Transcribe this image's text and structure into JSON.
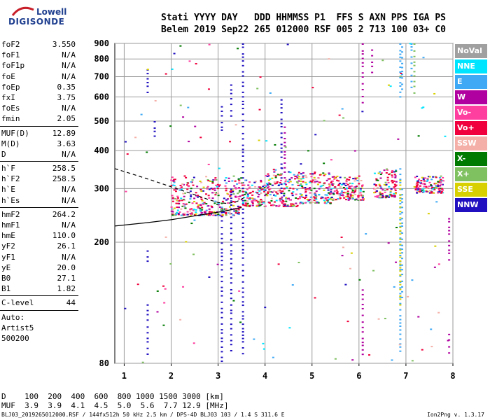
{
  "logo": {
    "line1": "Lowell",
    "line2": "DIGISONDE"
  },
  "header": {
    "row1": "Stati YYYY DAY   DDD HHMMSS P1  FFS S AXN PPS IGA PS",
    "row2": "Belem 2019 Sep22 265 012000 RSF 005 2 713 100 03+ C0"
  },
  "params": {
    "group1": [
      {
        "k": "foF2",
        "v": "3.550"
      },
      {
        "k": "foF1",
        "v": "N/A"
      },
      {
        "k": "foF1p",
        "v": "N/A"
      },
      {
        "k": "foE",
        "v": "N/A"
      },
      {
        "k": "foEp",
        "v": "0.35"
      },
      {
        "k": "fxI",
        "v": "3.75"
      },
      {
        "k": "foEs",
        "v": "N/A"
      },
      {
        "k": "fmin",
        "v": "2.05"
      }
    ],
    "group2": [
      {
        "k": "MUF(D)",
        "v": "12.89"
      },
      {
        "k": "M(D)",
        "v": "3.63"
      },
      {
        "k": "D",
        "v": "N/A"
      }
    ],
    "group3": [
      {
        "k": "h`F",
        "v": "258.5"
      },
      {
        "k": "h`F2",
        "v": "258.5"
      },
      {
        "k": "h`E",
        "v": "N/A"
      },
      {
        "k": "h`Es",
        "v": "N/A"
      }
    ],
    "group4": [
      {
        "k": "hmF2",
        "v": "264.2"
      },
      {
        "k": "hmF1",
        "v": "N/A"
      },
      {
        "k": "hmE",
        "v": "110.0"
      },
      {
        "k": "yF2",
        "v": "26.1"
      },
      {
        "k": "yF1",
        "v": "N/A"
      },
      {
        "k": "yE",
        "v": "20.0"
      },
      {
        "k": "B0",
        "v": "27.1"
      },
      {
        "k": "B1",
        "v": "1.82"
      }
    ],
    "group5": [
      {
        "k": "C-level",
        "v": "44"
      }
    ],
    "auto": [
      "Auto:",
      "Artist5",
      "500200"
    ]
  },
  "legend": [
    {
      "label": "NoVal",
      "color": "#a0a0a0"
    },
    {
      "label": "NNE",
      "color": "#00e5ff"
    },
    {
      "label": "E",
      "color": "#3fa9f5"
    },
    {
      "label": "W",
      "color": "#b0009f"
    },
    {
      "label": "Vo-",
      "color": "#ff3fa0"
    },
    {
      "label": "Vo+",
      "color": "#f0003c"
    },
    {
      "label": "SSW",
      "color": "#f4b0a8"
    },
    {
      "label": "X-",
      "color": "#007a00"
    },
    {
      "label": "X+",
      "color": "#7fc060"
    },
    {
      "label": "SSE",
      "color": "#d8d000"
    },
    {
      "label": "NNW",
      "color": "#2010c0"
    }
  ],
  "bottom": {
    "d_row": "D    100  200  400  600  800 1000 1500 3000 [km]",
    "muf_row": "MUF  3.9  3.9  4.1  4.5  5.0  5.6  7.7 12.9 [MHz]",
    "footer_left": "BLJ03_2019265012000.RSF / 144fx512h 50 kHz 2.5 km / DPS-4D BLJ03 103 / 1.4 S 311.6 E",
    "footer_right": "Ion2Png v. 1.3.17"
  },
  "chart_data": {
    "type": "scatter",
    "xlim": [
      0.8,
      8.0
    ],
    "ylim": [
      80,
      900
    ],
    "y_scale": "log",
    "xticks": [
      "1",
      "2",
      "3",
      "4",
      "5",
      "6",
      "7",
      "8"
    ],
    "yticks": [
      "80",
      "200",
      "300",
      "400",
      "500",
      "600",
      "700",
      "800",
      "900"
    ],
    "grid": true,
    "profile_curve": {
      "x": [
        0.8,
        1.5,
        2.0,
        2.5,
        3.0,
        3.3,
        3.5
      ],
      "y": [
        226,
        232,
        237,
        244,
        251,
        256,
        260
      ]
    },
    "virtual_trace": {
      "x": [
        0.8,
        1.2,
        1.6,
        2.0,
        2.4,
        2.8,
        3.0,
        3.2,
        3.4,
        3.55
      ],
      "y": [
        349,
        334,
        319,
        304,
        290,
        276,
        270,
        268,
        272,
        280
      ]
    },
    "columns": [
      {
        "x": 1.5,
        "y": [
          [
            85,
            125
          ],
          [
            170,
            188
          ],
          [
            620,
            740
          ]
        ],
        "color": "#2010c0"
      },
      {
        "x": 1.65,
        "y": [
          [
            430,
            500
          ]
        ],
        "color": "#2010c0"
      },
      {
        "x": 3.08,
        "y": [
          [
            80,
            260
          ],
          [
            460,
            560
          ]
        ],
        "color": "#2010c0"
      },
      {
        "x": 3.28,
        "y": [
          [
            85,
            300
          ],
          [
            520,
            660
          ]
        ],
        "color": "#2010c0"
      },
      {
        "x": 3.53,
        "y": [
          [
            85,
            900
          ]
        ],
        "color": "#2010c0"
      },
      {
        "x": 4.35,
        "y": [
          [
            270,
            590
          ]
        ],
        "color": "#2010c0"
      },
      {
        "x": 4.42,
        "y": [
          [
            300,
            480
          ]
        ],
        "color": "#b0009f"
      },
      {
        "x": 6.08,
        "y": [
          [
            85,
            140
          ],
          [
            560,
            900
          ]
        ],
        "color": "#b0009f"
      },
      {
        "x": 6.28,
        "y": [
          [
            720,
            860
          ]
        ],
        "color": "#b0009f"
      },
      {
        "x": 6.88,
        "y": [
          [
            85,
            350
          ],
          [
            600,
            900
          ]
        ],
        "color": "#3fa9f5"
      },
      {
        "x": 6.92,
        "y": [
          [
            130,
            300
          ],
          [
            620,
            880
          ]
        ],
        "color": "#3fa9f5"
      },
      {
        "x": 7.12,
        "y": [
          [
            640,
            900
          ]
        ],
        "color": "#3fa9f5"
      },
      {
        "x": 7.18,
        "y": [
          [
            610,
            900
          ]
        ],
        "color": "#7fc060"
      },
      {
        "x": 7.92,
        "y": [
          [
            175,
            240
          ],
          [
            85,
            100
          ]
        ],
        "color": "#b0009f"
      },
      {
        "x": 6.88,
        "y": [
          [
            120,
            320
          ]
        ],
        "color": "#d8d000"
      }
    ],
    "clusters": [
      {
        "x0": 2.0,
        "x1": 3.5,
        "y0": 245,
        "y1": 330
      },
      {
        "x0": 3.5,
        "x1": 4.0,
        "y0": 262,
        "y1": 320
      },
      {
        "x0": 4.0,
        "x1": 4.7,
        "y0": 262,
        "y1": 350
      },
      {
        "x0": 4.7,
        "x1": 5.4,
        "y0": 268,
        "y1": 340
      },
      {
        "x0": 5.4,
        "x1": 6.1,
        "y0": 275,
        "y1": 330
      },
      {
        "x0": 6.3,
        "x1": 6.8,
        "y0": 280,
        "y1": 350
      },
      {
        "x0": 7.2,
        "x1": 7.8,
        "y0": 290,
        "y1": 330
      }
    ],
    "cluster_colors": [
      "#f0003c",
      "#ff3fa0",
      "#b0009f",
      "#2010c0",
      "#3fa9f5",
      "#007a00",
      "#7fc060",
      "#d8d000",
      "#f4b0a8",
      "#00e5ff"
    ]
  }
}
